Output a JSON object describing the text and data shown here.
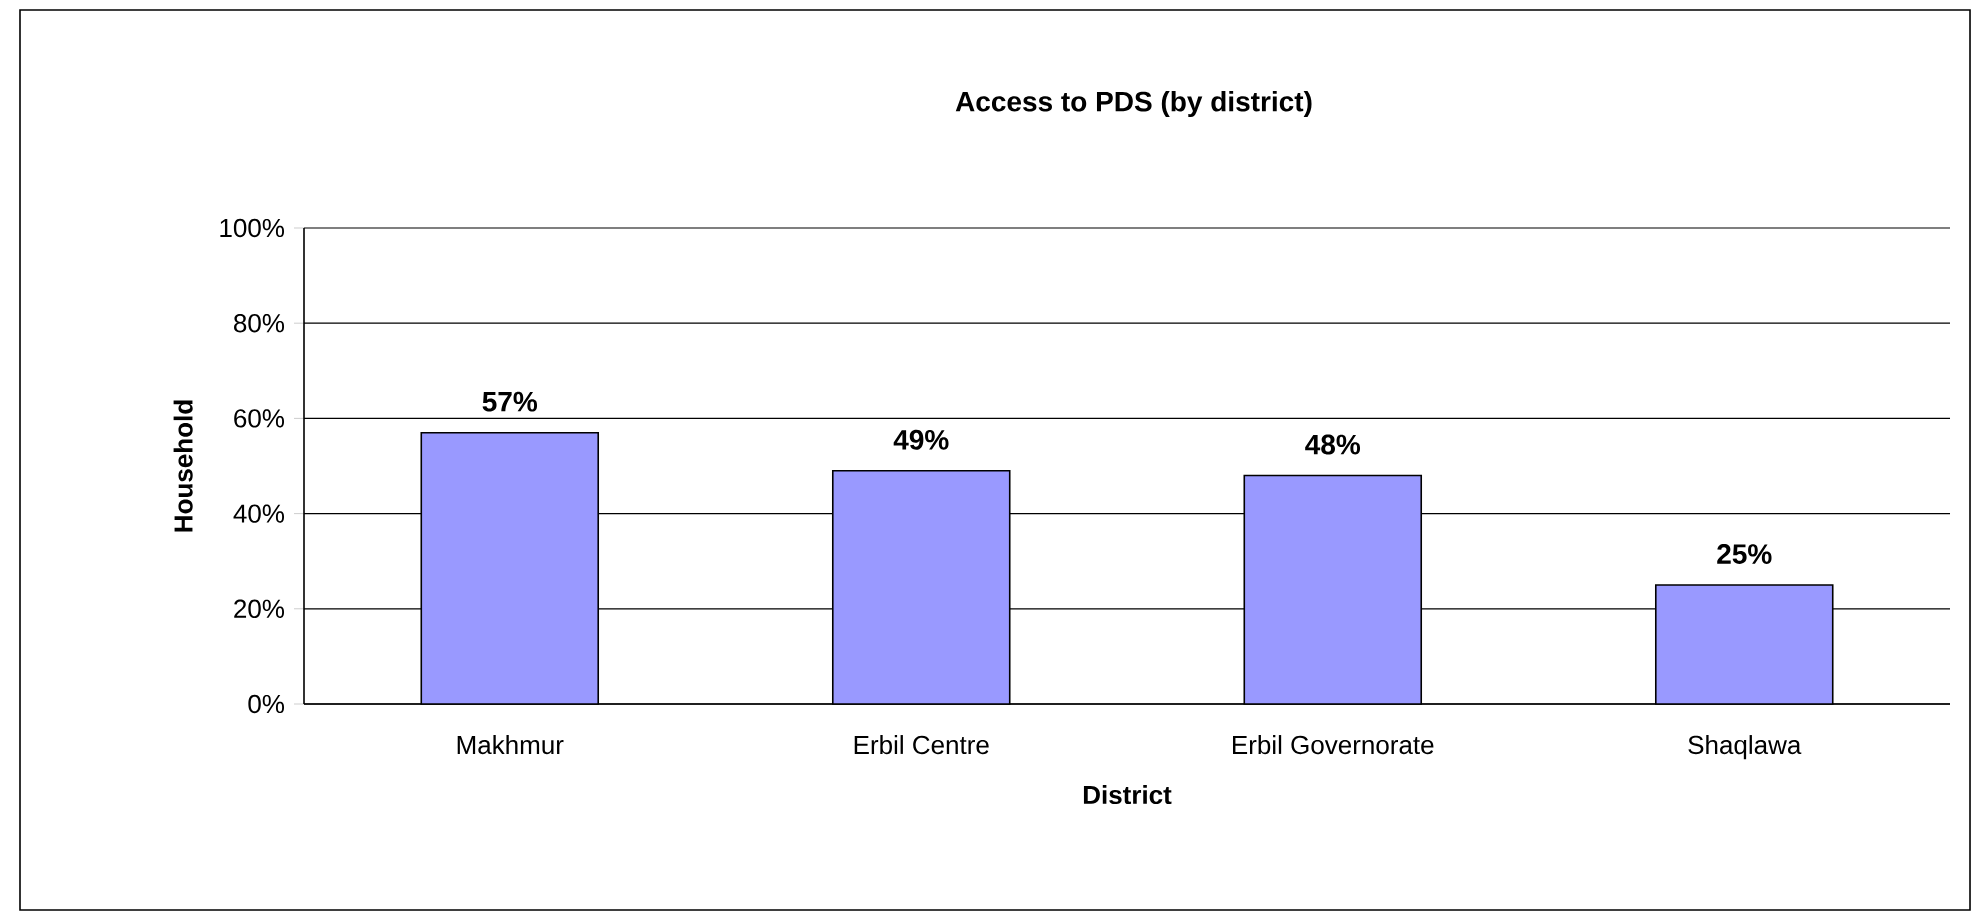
{
  "chart_data": {
    "type": "bar",
    "title": "Access to PDS (by district)",
    "xlabel": "District",
    "ylabel": "Household",
    "categories": [
      "Makhmur",
      "Erbil Centre",
      "Erbil Governorate",
      "Shaqlawa"
    ],
    "values": [
      57,
      49,
      48,
      25
    ],
    "color": "#9999ff",
    "value_labels": [
      "57%",
      "49%",
      "48%",
      "25%"
    ],
    "ylim": [
      0,
      100
    ],
    "yticks": [
      {
        "value": 0,
        "label": "0%"
      },
      {
        "value": 20,
        "label": "20%"
      },
      {
        "value": 40,
        "label": "40%"
      },
      {
        "value": 60,
        "label": "60%"
      },
      {
        "value": 80,
        "label": "80%"
      },
      {
        "value": 100,
        "label": "100%"
      }
    ],
    "grid": "y"
  }
}
